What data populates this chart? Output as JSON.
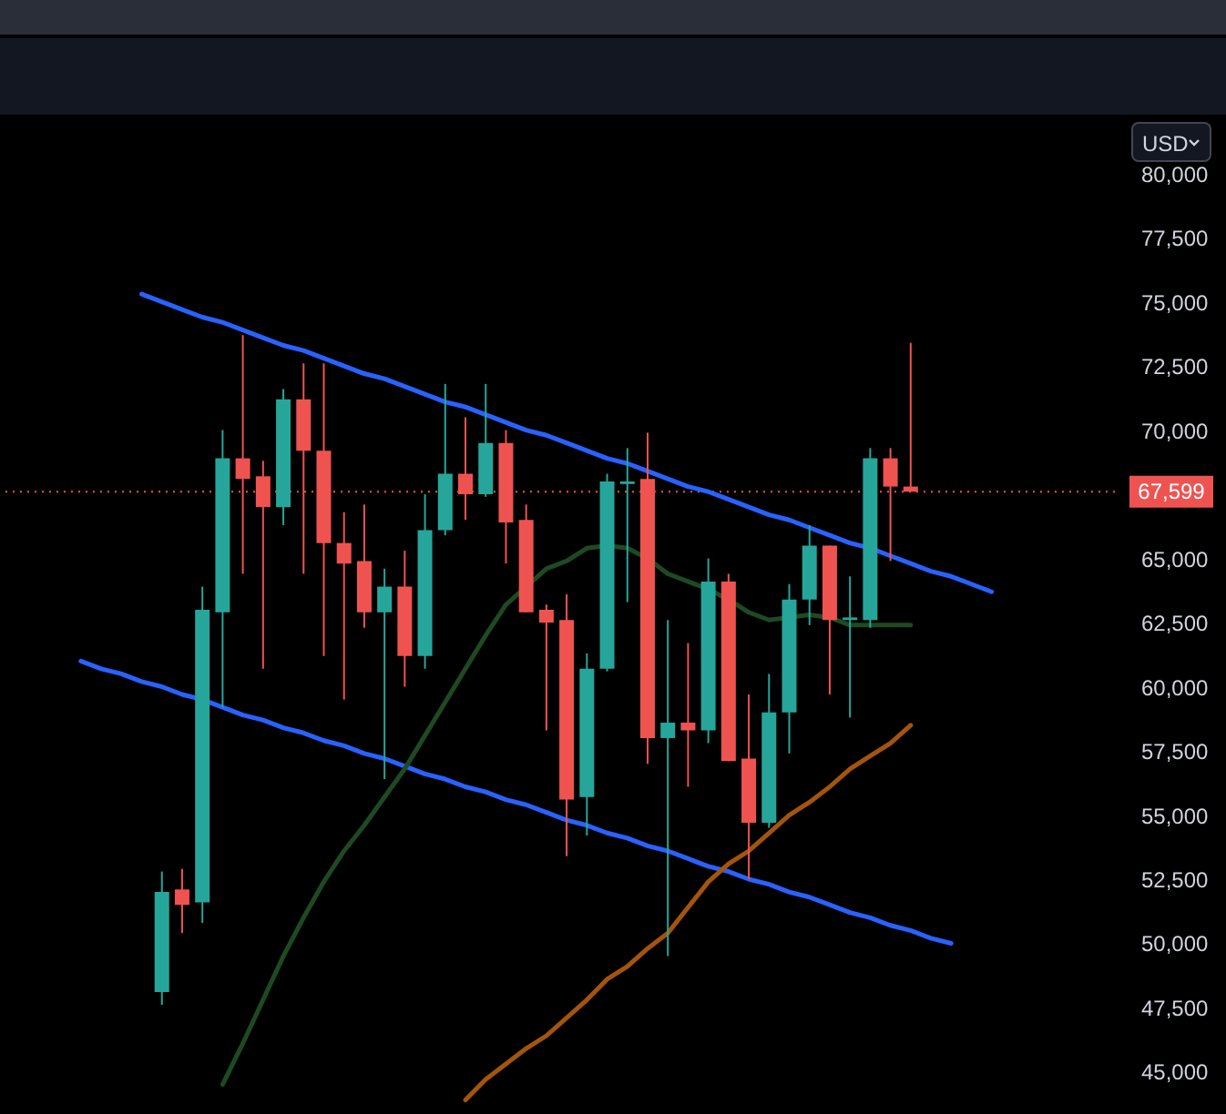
{
  "chart_data": {
    "type": "candlestick",
    "categories": [
      null,
      null,
      null,
      null,
      null,
      null,
      null,
      null,
      null,
      null,
      null,
      null,
      null,
      null,
      null,
      null,
      null,
      null,
      null,
      null,
      null,
      null,
      null,
      null,
      null,
      null,
      null,
      null,
      null,
      null,
      null,
      null,
      null,
      null,
      null,
      null,
      null,
      null,
      null,
      null,
      null,
      null,
      null,
      null,
      null,
      null,
      null,
      null,
      null,
      null,
      null,
      null,
      null,
      null,
      null,
      null
    ],
    "ohlc": [
      null,
      null,
      null,
      null,
      null,
      null,
      null,
      null,
      [
        48100,
        52800,
        47600,
        52000
      ],
      [
        52100,
        52900,
        50400,
        51500
      ],
      [
        51600,
        63900,
        50800,
        63000
      ],
      [
        62900,
        70000,
        59200,
        68900
      ],
      [
        68900,
        73700,
        64400,
        68100
      ],
      [
        68200,
        68800,
        60700,
        67000
      ],
      [
        67000,
        71600,
        66300,
        71200
      ],
      [
        71200,
        72600,
        64400,
        69200
      ],
      [
        69200,
        72600,
        61200,
        65600
      ],
      [
        65600,
        66800,
        59500,
        64800
      ],
      [
        64900,
        67100,
        62300,
        62900
      ],
      [
        62900,
        64600,
        56400,
        63900
      ],
      [
        63900,
        65300,
        60000,
        61200
      ],
      [
        61200,
        67500,
        60700,
        66100
      ],
      [
        66100,
        71800,
        65900,
        68300
      ],
      [
        68300,
        70500,
        66500,
        67500
      ],
      [
        67500,
        71800,
        67400,
        69500
      ],
      [
        69500,
        70000,
        64800,
        66400
      ],
      [
        66500,
        67100,
        62900,
        62900
      ],
      [
        63000,
        63200,
        58300,
        62500
      ],
      [
        62600,
        63600,
        53400,
        55600
      ],
      [
        55700,
        61300,
        54200,
        60700
      ],
      [
        60700,
        68300,
        60600,
        68000
      ],
      [
        67900,
        69300,
        63300,
        68000
      ],
      [
        68100,
        69900,
        57000,
        58000
      ],
      [
        58000,
        62600,
        49500,
        58600
      ],
      [
        58600,
        61700,
        56100,
        58300
      ],
      [
        58300,
        65000,
        57800,
        64100
      ],
      [
        64100,
        64400,
        57100,
        57100
      ],
      [
        57200,
        59700,
        52500,
        54700
      ],
      [
        54700,
        60500,
        54500,
        59000
      ],
      [
        59000,
        64000,
        57400,
        63400
      ],
      [
        63400,
        66300,
        62400,
        65500
      ],
      [
        65500,
        65500,
        59700,
        62600
      ],
      [
        62600,
        64300,
        58800,
        62700
      ],
      [
        62600,
        69300,
        62300,
        68900
      ],
      [
        68900,
        69300,
        64900,
        67800
      ],
      [
        67800,
        73400,
        67599,
        67599
      ],
      null,
      null,
      null,
      null,
      null,
      null,
      null,
      null,
      null,
      null
    ],
    "colors": [
      null,
      null,
      null,
      null,
      null,
      null,
      null,
      null,
      "#26a69a",
      "#ef5350",
      "#26a69a",
      "#26a69a",
      "#ef5350",
      "#ef5350",
      "#26a69a",
      "#ef5350",
      "#ef5350",
      "#ef5350",
      "#ef5350",
      "#26a69a",
      "#ef5350",
      "#26a69a",
      "#26a69a",
      "#ef5350",
      "#26a69a",
      "#ef5350",
      "#ef5350",
      "#ef5350",
      "#ef5350",
      "#26a69a",
      "#26a69a",
      "#26a69a",
      "#ef5350",
      "#26a69a",
      "#ef5350",
      "#26a69a",
      "#ef5350",
      "#ef5350",
      "#26a69a",
      "#26a69a",
      "#26a69a",
      "#ef5350",
      "#26a69a",
      "#26a69a",
      "#ef5350",
      "#ef5350",
      null,
      null,
      null,
      null,
      null,
      null,
      null,
      null,
      null,
      null
    ],
    "series": [
      {
        "type": "line",
        "color": "#2962ff",
        "values": [
          null,
          null,
          null,
          null,
          null,
          null,
          null,
          75300,
          75000,
          74700,
          74400,
          74200,
          73900,
          73600,
          73300,
          73100,
          72800,
          72500,
          72200,
          72000,
          71700,
          71400,
          71100,
          70900,
          70600,
          70300,
          70000,
          69800,
          69500,
          69200,
          68900,
          68700,
          68400,
          68100,
          67800,
          67600,
          67300,
          67000,
          66700,
          66500,
          66200,
          65900,
          65600,
          65400,
          65100,
          64800,
          64500,
          64300,
          64000,
          63700,
          null,
          null,
          null,
          null,
          null,
          null
        ]
      },
      {
        "type": "line",
        "color": "#2962ff",
        "values": [
          null,
          null,
          null,
          null,
          61000,
          60700,
          60500,
          60200,
          60000,
          59700,
          59500,
          59200,
          58900,
          58700,
          58400,
          58200,
          57900,
          57700,
          57400,
          57200,
          56900,
          56600,
          56400,
          56100,
          55900,
          55600,
          55400,
          55100,
          54800,
          54600,
          54300,
          54100,
          53800,
          53600,
          53300,
          53000,
          52800,
          52500,
          52300,
          52000,
          51800,
          51500,
          51200,
          51000,
          50700,
          50500,
          50200,
          50000,
          null,
          null,
          null,
          null,
          null,
          null,
          null,
          null
        ]
      },
      {
        "type": "line",
        "color": "#1e4a22",
        "values": [
          null,
          null,
          null,
          null,
          null,
          null,
          null,
          null,
          null,
          null,
          null,
          44500,
          46100,
          47800,
          49500,
          51000,
          52400,
          53600,
          54600,
          55700,
          56800,
          58100,
          59400,
          60700,
          62000,
          63200,
          null,
          64600,
          64900,
          65400,
          65500,
          65400,
          65000,
          64400,
          64100,
          63800,
          63400,
          62900,
          62600,
          null,
          62800,
          62700,
          62400,
          62400,
          62400,
          62400,
          null,
          null,
          null,
          null,
          null,
          null,
          null,
          null,
          null,
          null
        ]
      },
      {
        "type": "line",
        "color": "#a4540c",
        "values": [
          null,
          null,
          null,
          null,
          null,
          null,
          null,
          null,
          null,
          null,
          null,
          null,
          null,
          null,
          null,
          null,
          null,
          null,
          null,
          null,
          null,
          null,
          null,
          43900,
          44700,
          45300,
          45900,
          46400,
          47100,
          47800,
          48600,
          49100,
          49800,
          50400,
          51400,
          52400,
          53100,
          53600,
          54300,
          55000,
          55500,
          56100,
          56800,
          57300,
          57800,
          58500,
          null,
          null,
          null,
          null,
          null,
          null,
          null,
          null,
          null,
          null
        ]
      }
    ],
    "ylim": [
      43350,
      82150
    ],
    "yticks": [
      {
        "value": 45000,
        "label": "45,000"
      },
      {
        "value": 47500,
        "label": "47,500"
      },
      {
        "value": 50000,
        "label": "50,000"
      },
      {
        "value": 52500,
        "label": "52,500"
      },
      {
        "value": 55000,
        "label": "55,000"
      },
      {
        "value": 57500,
        "label": "57,500"
      },
      {
        "value": 60000,
        "label": "60,000"
      },
      {
        "value": 62500,
        "label": "62,500"
      },
      {
        "value": 65000,
        "label": "65,000"
      },
      {
        "value": 70000,
        "label": "70,000"
      },
      {
        "value": 72500,
        "label": "72,500"
      },
      {
        "value": 75000,
        "label": "75,000"
      },
      {
        "value": 77500,
        "label": "77,500"
      },
      {
        "value": 80000,
        "label": "80,000"
      }
    ],
    "ref_lines": [
      {
        "axis": "y",
        "value": 67599,
        "label": "67,599",
        "color": "#ef5350",
        "line_style": "dotted"
      }
    ],
    "annotations": [
      "USD"
    ],
    "tick_labels": "y"
  }
}
